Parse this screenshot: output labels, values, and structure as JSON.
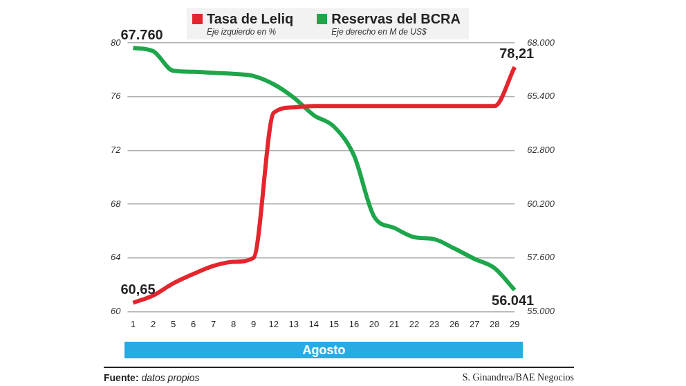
{
  "chart_data": {
    "type": "line",
    "xlabel": "Agosto",
    "ylabel": "Eje izquierdo en %",
    "y2label": "Eje derecho en M de US$",
    "categories": [
      "1",
      "2",
      "5",
      "6",
      "7",
      "8",
      "9",
      "12",
      "13",
      "14",
      "15",
      "16",
      "20",
      "21",
      "22",
      "23",
      "26",
      "27",
      "28",
      "29"
    ],
    "series": [
      {
        "name": "Tasa de Leliq",
        "color": "#e3262d",
        "axis": "y",
        "values": [
          60.65,
          61.2,
          62.1,
          62.8,
          63.4,
          63.7,
          64.0,
          74.8,
          75.2,
          75.3,
          75.3,
          75.3,
          75.3,
          75.3,
          75.3,
          75.3,
          75.3,
          75.3,
          75.3,
          78.21
        ]
      },
      {
        "name": "Reservas del BCRA",
        "color": "#1ea64b",
        "axis": "y2",
        "values": [
          67760,
          67600,
          66650,
          66600,
          66550,
          66500,
          66400,
          66000,
          65350,
          64500,
          63950,
          62550,
          59600,
          59050,
          58600,
          58500,
          58050,
          57550,
          57100,
          56041
        ]
      }
    ],
    "ylim": [
      60,
      80
    ],
    "yticks": [
      60,
      64,
      68,
      72,
      76,
      80
    ],
    "y2lim": [
      55000,
      68000
    ],
    "y2ticks": [
      {
        "value": 55000,
        "label": "55.000"
      },
      {
        "value": 57600,
        "label": "57.600"
      },
      {
        "value": 60200,
        "label": "60.200"
      },
      {
        "value": 62800,
        "label": "62.800"
      },
      {
        "value": 65400,
        "label": "65.400"
      },
      {
        "value": 68000,
        "label": "68.000"
      }
    ],
    "grid": true,
    "legend": "top",
    "annotations": [
      {
        "text": "67.760",
        "x": "1",
        "y": 67760,
        "axis": "y2"
      },
      {
        "text": "60,65",
        "x": "1",
        "y": 60.65,
        "axis": "y"
      },
      {
        "text": "78,21",
        "x": "29",
        "y": 78.21,
        "axis": "y"
      },
      {
        "text": "56.041",
        "x": "29",
        "y": 56041,
        "axis": "y2"
      }
    ],
    "source_label": "Fuente:",
    "source": "datos propios",
    "credit": "S. Ginandrea/BAE Negocios"
  }
}
